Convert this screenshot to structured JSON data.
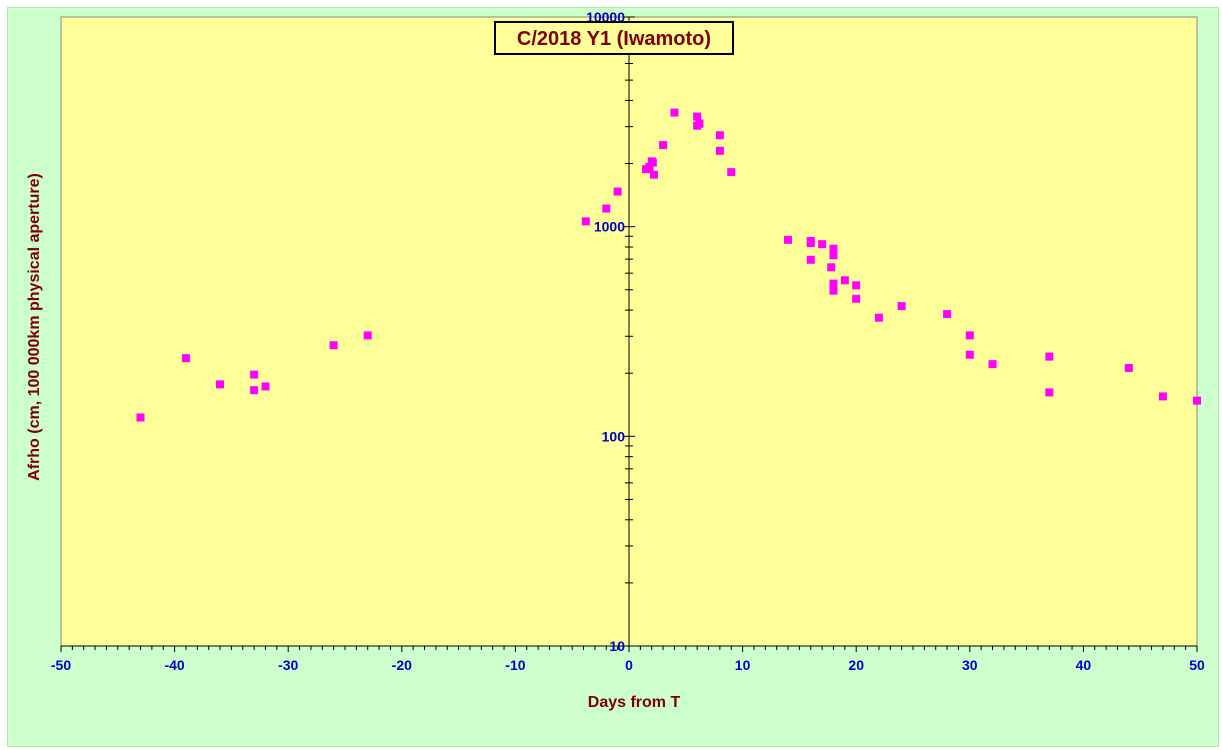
{
  "chart_data": {
    "type": "scatter",
    "title": "C/2018 Y1 (Iwamoto)",
    "xlabel": "Days from T",
    "ylabel": "Afrho (cm, 100 000km physical aperture)",
    "xlim": [
      -50,
      50
    ],
    "ylim": [
      10,
      10000
    ],
    "yscale": "log",
    "x_major_step": 10,
    "x_minor_step": 1,
    "x_tick_labels": [
      "-50",
      "-40",
      "-30",
      "-20",
      "-10",
      "0",
      "10",
      "20",
      "30",
      "40",
      "50"
    ],
    "y_tick_labels": [
      "10",
      "100",
      "1000",
      "10000"
    ],
    "grid": false,
    "legend": "none",
    "series": [
      {
        "marker": "square",
        "points": [
          [
            -43,
            123
          ],
          [
            -39,
            236
          ],
          [
            -36,
            177
          ],
          [
            -33,
            197
          ],
          [
            -33,
            166
          ],
          [
            -32,
            173
          ],
          [
            -26,
            272
          ],
          [
            -23,
            303
          ],
          [
            -3.8,
            1060
          ],
          [
            -2,
            1220
          ],
          [
            -1,
            1470
          ],
          [
            1.5,
            1880
          ],
          [
            1.8,
            1930
          ],
          [
            2,
            2050
          ],
          [
            2.1,
            2020
          ],
          [
            2.2,
            1770
          ],
          [
            3,
            2450
          ],
          [
            4,
            3500
          ],
          [
            6,
            3350
          ],
          [
            6,
            3030
          ],
          [
            6.2,
            3100
          ],
          [
            8,
            2730
          ],
          [
            8,
            2300
          ],
          [
            9,
            1820
          ],
          [
            14,
            865
          ],
          [
            16,
            855
          ],
          [
            16,
            835
          ],
          [
            16,
            695
          ],
          [
            17,
            825
          ],
          [
            18,
            785
          ],
          [
            18,
            730
          ],
          [
            17.8,
            640
          ],
          [
            18,
            535
          ],
          [
            18,
            495
          ],
          [
            19,
            555
          ],
          [
            20,
            525
          ],
          [
            20,
            453
          ],
          [
            22,
            368
          ],
          [
            24,
            418
          ],
          [
            28,
            383
          ],
          [
            30,
            303
          ],
          [
            30,
            245
          ],
          [
            32,
            221
          ],
          [
            37,
            240
          ],
          [
            37,
            162
          ],
          [
            44,
            212
          ],
          [
            47,
            155
          ],
          [
            50,
            148
          ]
        ]
      }
    ]
  },
  "colors": {
    "frame_bg": "#ccffcc",
    "plot_bg": "#ffff99",
    "marker": "#ff00ff",
    "tick_label": "#0000cc",
    "axis_title": "#800000",
    "title_text": "#800000"
  }
}
